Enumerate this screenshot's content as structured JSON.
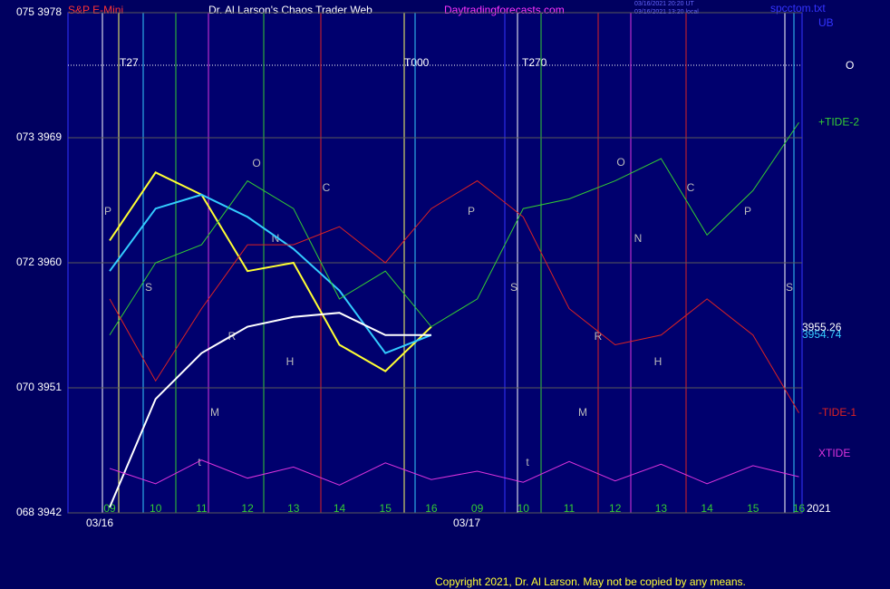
{
  "chart_data": {
    "type": "line",
    "title": "Dr. Al Larson's Chaos Trader Web",
    "subtitle": "S&P E-Mini",
    "site": "Daytradingforecasts.com",
    "timestamps": [
      "03/16/2021 20:20 UT",
      "03/16/2021 13:20 local"
    ],
    "file": "spcctom.txt",
    "copyright": "Copyright 2021, Dr. Al Larson. May not be copied by any means.",
    "categories": [
      "09",
      "10",
      "11",
      "12",
      "13",
      "14",
      "15",
      "16",
      "09",
      "10",
      "11",
      "12",
      "13",
      "14",
      "15",
      "16"
    ],
    "dates": [
      "03/16",
      "03/17"
    ],
    "year": "2021",
    "ylim": [
      3942,
      3978
    ],
    "yticks": [
      {
        "value": 3978,
        "label": "075  3978"
      },
      {
        "value": 3969,
        "label": "073  3969"
      },
      {
        "value": 3960,
        "label": "072  3960"
      },
      {
        "value": 3951,
        "label": "070  3951"
      },
      {
        "value": 3942,
        "label": "068  3942"
      }
    ],
    "grid": true,
    "series": [
      {
        "color": "#ffff33",
        "values": [
          3961.6,
          3966.5,
          3964.9,
          3959.4,
          3960.0,
          3954.1,
          3952.2,
          3955.4,
          null,
          null,
          null,
          null,
          null,
          null,
          null,
          null
        ]
      },
      {
        "color": "#33ccff",
        "values": [
          3959.4,
          3963.9,
          3964.9,
          3963.3,
          3961.0,
          3958.0,
          3953.5,
          3954.8,
          null,
          null,
          null,
          null,
          null,
          null,
          null,
          null
        ]
      },
      {
        "color": "#ffffff",
        "values": [
          3942.4,
          3950.2,
          3953.5,
          3955.4,
          3956.1,
          3956.4,
          3954.8,
          3954.8,
          null,
          null,
          null,
          null,
          null,
          null,
          null,
          null
        ]
      },
      {
        "name": "+TIDE-2",
        "color": "#33cc33",
        "values": [
          3954.8,
          3960.0,
          3961.3,
          3965.9,
          3963.9,
          3957.4,
          3959.4,
          3955.4,
          3957.4,
          3963.9,
          3964.6,
          3965.9,
          3967.5,
          3962.0,
          3965.2,
          3970.1
        ]
      },
      {
        "name": "-TIDE-1",
        "color": "#dd2222",
        "values": [
          3957.4,
          3951.5,
          3956.7,
          3961.3,
          3961.3,
          3962.6,
          3960.0,
          3963.9,
          3965.9,
          3963.3,
          3956.7,
          3954.1,
          3954.8,
          3957.4,
          3954.8,
          3949.2
        ]
      },
      {
        "name": "XTIDE",
        "color": "#dd33dd",
        "values": [
          3945.2,
          3944.1,
          3945.8,
          3944.5,
          3945.3,
          3944.0,
          3945.6,
          3944.4,
          3945.0,
          3944.2,
          3945.7,
          3944.3,
          3945.5,
          3944.1,
          3945.4,
          3944.6
        ]
      }
    ],
    "readouts": [
      3955.26,
      3954.74
    ],
    "ub": "UB",
    "o_label": "O",
    "levels": [
      "T27",
      "T000",
      "T270"
    ],
    "annotations": [
      "P",
      "S",
      "O",
      "N",
      "H",
      "M",
      "C",
      "R",
      "t",
      "P",
      "S",
      "O",
      "N",
      "H",
      "M",
      "C",
      "R",
      "t",
      "P",
      "S"
    ]
  }
}
